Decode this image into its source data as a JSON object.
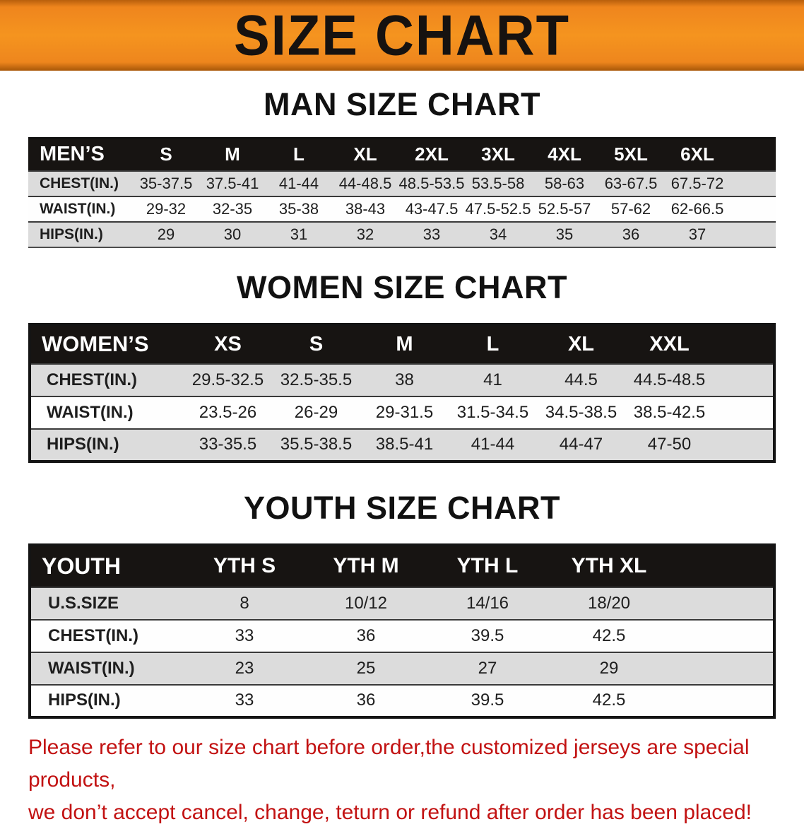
{
  "banner": {
    "title": "SIZE CHART",
    "background_color": "#F28A1E",
    "title_color": "#161210"
  },
  "colors": {
    "table_header_bg": "#171412",
    "row_stripe": "#DCDCDC",
    "disclaimer_red": "#C21212"
  },
  "sections": [
    {
      "id": "men",
      "heading": "MAN SIZE CHART",
      "table": {
        "header": [
          "MEN’S",
          "S",
          "M",
          "L",
          "XL",
          "2XL",
          "3XL",
          "4XL",
          "5XL",
          "6XL"
        ],
        "rows": [
          [
            "CHEST(IN.)",
            "35-37.5",
            "37.5-41",
            "41-44",
            "44-48.5",
            "48.5-53.5",
            "53.5-58",
            "58-63",
            "63-67.5",
            "67.5-72"
          ],
          [
            "WAIST(IN.)",
            "29-32",
            "32-35",
            "35-38",
            "38-43",
            "43-47.5",
            "47.5-52.5",
            "52.5-57",
            "57-62",
            "62-66.5"
          ],
          [
            "HIPS(IN.)",
            "29",
            "30",
            "31",
            "32",
            "33",
            "34",
            "35",
            "36",
            "37"
          ]
        ]
      }
    },
    {
      "id": "women",
      "heading": "WOMEN SIZE CHART",
      "table": {
        "header": [
          "WOMEN’S",
          "XS",
          "S",
          "M",
          "L",
          "XL",
          "XXL"
        ],
        "rows": [
          [
            "CHEST(IN.)",
            "29.5-32.5",
            "32.5-35.5",
            "38",
            "41",
            "44.5",
            "44.5-48.5"
          ],
          [
            "WAIST(IN.)",
            "23.5-26",
            "26-29",
            "29-31.5",
            "31.5-34.5",
            "34.5-38.5",
            "38.5-42.5"
          ],
          [
            "HIPS(IN.)",
            "33-35.5",
            "35.5-38.5",
            "38.5-41",
            "41-44",
            "44-47",
            "47-50"
          ]
        ]
      }
    },
    {
      "id": "youth",
      "heading": "YOUTH SIZE CHART",
      "table": {
        "header": [
          "YOUTH",
          "YTH S",
          "YTH M",
          "YTH L",
          "YTH XL"
        ],
        "rows": [
          [
            "U.S.SIZE",
            "8",
            "10/12",
            "14/16",
            "18/20"
          ],
          [
            "CHEST(IN.)",
            "33",
            "36",
            "39.5",
            "42.5"
          ],
          [
            "WAIST(IN.)",
            "23",
            "25",
            "27",
            "29"
          ],
          [
            "HIPS(IN.)",
            "33",
            "36",
            "39.5",
            "42.5"
          ]
        ]
      }
    }
  ],
  "disclaimer": {
    "lines": [
      "Please refer to our size chart before order,the customized jerseys are special products,",
      "we don’t accept cancel, change, teturn or refund after order has been placed!"
    ]
  }
}
